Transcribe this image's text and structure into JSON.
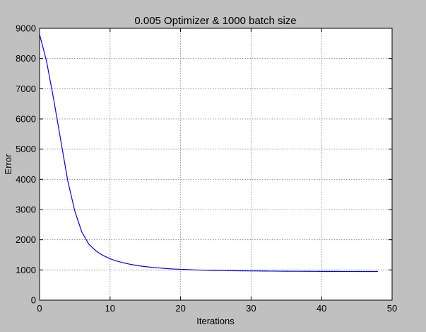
{
  "chart_data": {
    "type": "line",
    "title": "0.005 Optimizer & 1000 batch size",
    "xlabel": "Iterations",
    "ylabel": "Error",
    "xlim": [
      0,
      50
    ],
    "ylim": [
      0,
      9000
    ],
    "xticks": [
      0,
      10,
      20,
      30,
      40,
      50
    ],
    "yticks": [
      0,
      1000,
      2000,
      3000,
      4000,
      5000,
      6000,
      7000,
      8000,
      9000
    ],
    "grid": true,
    "legend": "none",
    "series": [
      {
        "color": "#0000ff",
        "x": [
          0,
          1,
          2,
          3,
          4,
          5,
          6,
          7,
          8,
          9,
          10,
          11,
          12,
          13,
          14,
          15,
          16,
          17,
          18,
          19,
          20,
          21,
          22,
          23,
          24,
          25,
          26,
          27,
          28,
          29,
          30,
          31,
          32,
          33,
          34,
          35,
          36,
          37,
          38,
          39,
          40,
          41,
          42,
          43,
          44,
          45,
          46,
          47,
          48
        ],
        "y": [
          8800,
          7900,
          6650,
          5300,
          3950,
          2950,
          2250,
          1850,
          1630,
          1480,
          1370,
          1290,
          1230,
          1180,
          1140,
          1110,
          1085,
          1065,
          1045,
          1030,
          1020,
          1010,
          1000,
          995,
          990,
          985,
          980,
          975,
          972,
          970,
          968,
          966,
          964,
          962,
          960,
          958,
          957,
          956,
          955,
          954,
          953,
          952,
          952,
          951,
          951,
          950,
          950,
          950,
          950
        ]
      }
    ]
  }
}
